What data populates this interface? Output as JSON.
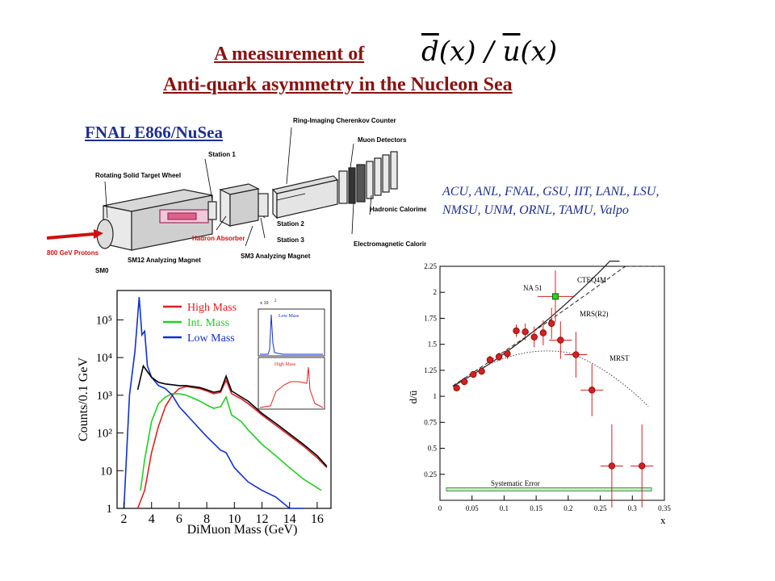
{
  "header": {
    "title_line1": "A measurement of",
    "formula_d": "d",
    "formula_u": "u",
    "formula_x": "(x)",
    "title_line2": "Anti-quark asymmetry in the Nucleon Sea"
  },
  "experiment": {
    "name": "FNAL E866/NuSea",
    "institutions_line1": "ACU, ANL,  FNAL, GSU, IIT, LANL, LSU,",
    "institutions_line2": "NMSU, UNM, ORNL, TAMU, Valpo"
  },
  "diagram": {
    "labels": {
      "rotating_target": "Rotating Solid Target Wheel",
      "beam": "800 GeV Protons",
      "sm0": "SM0",
      "sm12": "SM12 Analyzing Magnet",
      "hadron_absorber": "Hadron Absorber",
      "station1": "Station 1",
      "station2": "Station 2",
      "station3": "Station 3",
      "sm3": "SM3 Analyzing Magnet",
      "rich": "Ring-Imaging Cherenkov Counter",
      "muon": "Muon Detectors",
      "hadronic_cal": "Hadronic Calorimeter",
      "em_cal": "Electromagnetic Calorimeter"
    }
  },
  "colors": {
    "title": "#8b1010",
    "collab": "#1f2f8f",
    "high_mass": "#e02020",
    "int_mass": "#20d020",
    "low_mass": "#1030d0",
    "points": "#d42020"
  },
  "chart_data": [
    {
      "type": "line",
      "xlabel": "DiMuon Mass (GeV)",
      "ylabel": "Counts/0.1 GeV",
      "yscale": "log",
      "xlim": [
        1.5,
        17
      ],
      "ylim": [
        1,
        600000
      ],
      "x_ticks": [
        "2",
        "4",
        "6",
        "8",
        "10",
        "12",
        "14",
        "16"
      ],
      "y_ticks": [
        "1",
        "10",
        "10²",
        "10³",
        "10⁴",
        "10⁵"
      ],
      "series": [
        {
          "name": "High Mass",
          "x": [
            3.0,
            3.5,
            4.0,
            4.5,
            5.0,
            5.5,
            6.0,
            6.5,
            7.0,
            7.5,
            8.0,
            8.5,
            9.0,
            9.4,
            9.8,
            10.5,
            11,
            12,
            13,
            14,
            15,
            16,
            16.7
          ],
          "values": [
            1,
            3,
            30,
            150,
            500,
            1000,
            1500,
            1700,
            1600,
            1500,
            1300,
            1100,
            1200,
            2500,
            1100,
            800,
            600,
            300,
            160,
            85,
            45,
            22,
            12
          ]
        },
        {
          "name": "Int. Mass",
          "x": [
            3.2,
            3.5,
            4.0,
            4.5,
            5.0,
            5.5,
            6.0,
            6.5,
            7.0,
            7.5,
            8.0,
            8.5,
            9.0,
            9.4,
            9.8,
            10.5,
            11,
            12,
            13,
            14,
            15,
            16.3
          ],
          "values": [
            3,
            20,
            200,
            600,
            900,
            1100,
            1100,
            1000,
            850,
            700,
            550,
            450,
            500,
            900,
            300,
            200,
            120,
            50,
            25,
            12,
            6,
            3
          ]
        },
        {
          "name": "Low Mass",
          "x": [
            2.0,
            2.4,
            2.8,
            3.1,
            3.3,
            3.5,
            3.7,
            4.0,
            4.5,
            5.0,
            5.5,
            6.0,
            7.0,
            8.0,
            9.0,
            9.4,
            10,
            11,
            12,
            13,
            14,
            15
          ],
          "values": [
            1,
            1000,
            15000,
            400000,
            40000,
            50000,
            6000,
            3000,
            1800,
            1500,
            1000,
            500,
            200,
            80,
            35,
            30,
            12,
            5,
            3,
            2,
            1,
            1
          ]
        }
      ],
      "inset_labels": {
        "top_scale": "x 10",
        "top_exp": "2",
        "low_mass": "Low Mass",
        "high_mass": "High Mass"
      }
    },
    {
      "type": "scatter",
      "xlabel": "x",
      "ylabel": "d/ū",
      "xlim": [
        0,
        0.35
      ],
      "ylim": [
        0,
        2.25
      ],
      "x_ticks": [
        "0",
        "0.05",
        "0.1",
        "0.15",
        "0.2",
        "0.25",
        "0.3",
        "0.35"
      ],
      "y_ticks": [
        "0.25",
        "0.5",
        "0.75",
        "1",
        "1.25",
        "1.5",
        "1.75",
        "2",
        "2.25"
      ],
      "points": {
        "x": [
          0.026,
          0.038,
          0.052,
          0.065,
          0.078,
          0.092,
          0.105,
          0.119,
          0.133,
          0.147,
          0.161,
          0.174,
          0.188,
          0.212,
          0.237,
          0.268,
          0.315
        ],
        "y": [
          1.08,
          1.14,
          1.21,
          1.24,
          1.35,
          1.38,
          1.41,
          1.63,
          1.62,
          1.57,
          1.61,
          1.7,
          1.54,
          1.4,
          1.06,
          0.33,
          0.33
        ],
        "err": [
          0.03,
          0.03,
          0.03,
          0.03,
          0.04,
          0.04,
          0.05,
          0.06,
          0.08,
          0.1,
          0.12,
          0.15,
          0.18,
          0.22,
          0.25,
          0.4,
          0.4
        ]
      },
      "na51": {
        "label": "NA 51",
        "x": 0.18,
        "y": 1.96,
        "err": 0.25
      },
      "curve_labels": {
        "cteq": "CTEQ4M",
        "mrs": "MRS(R2)",
        "mrst": "MRST",
        "syst": "Systematic Error"
      }
    }
  ]
}
